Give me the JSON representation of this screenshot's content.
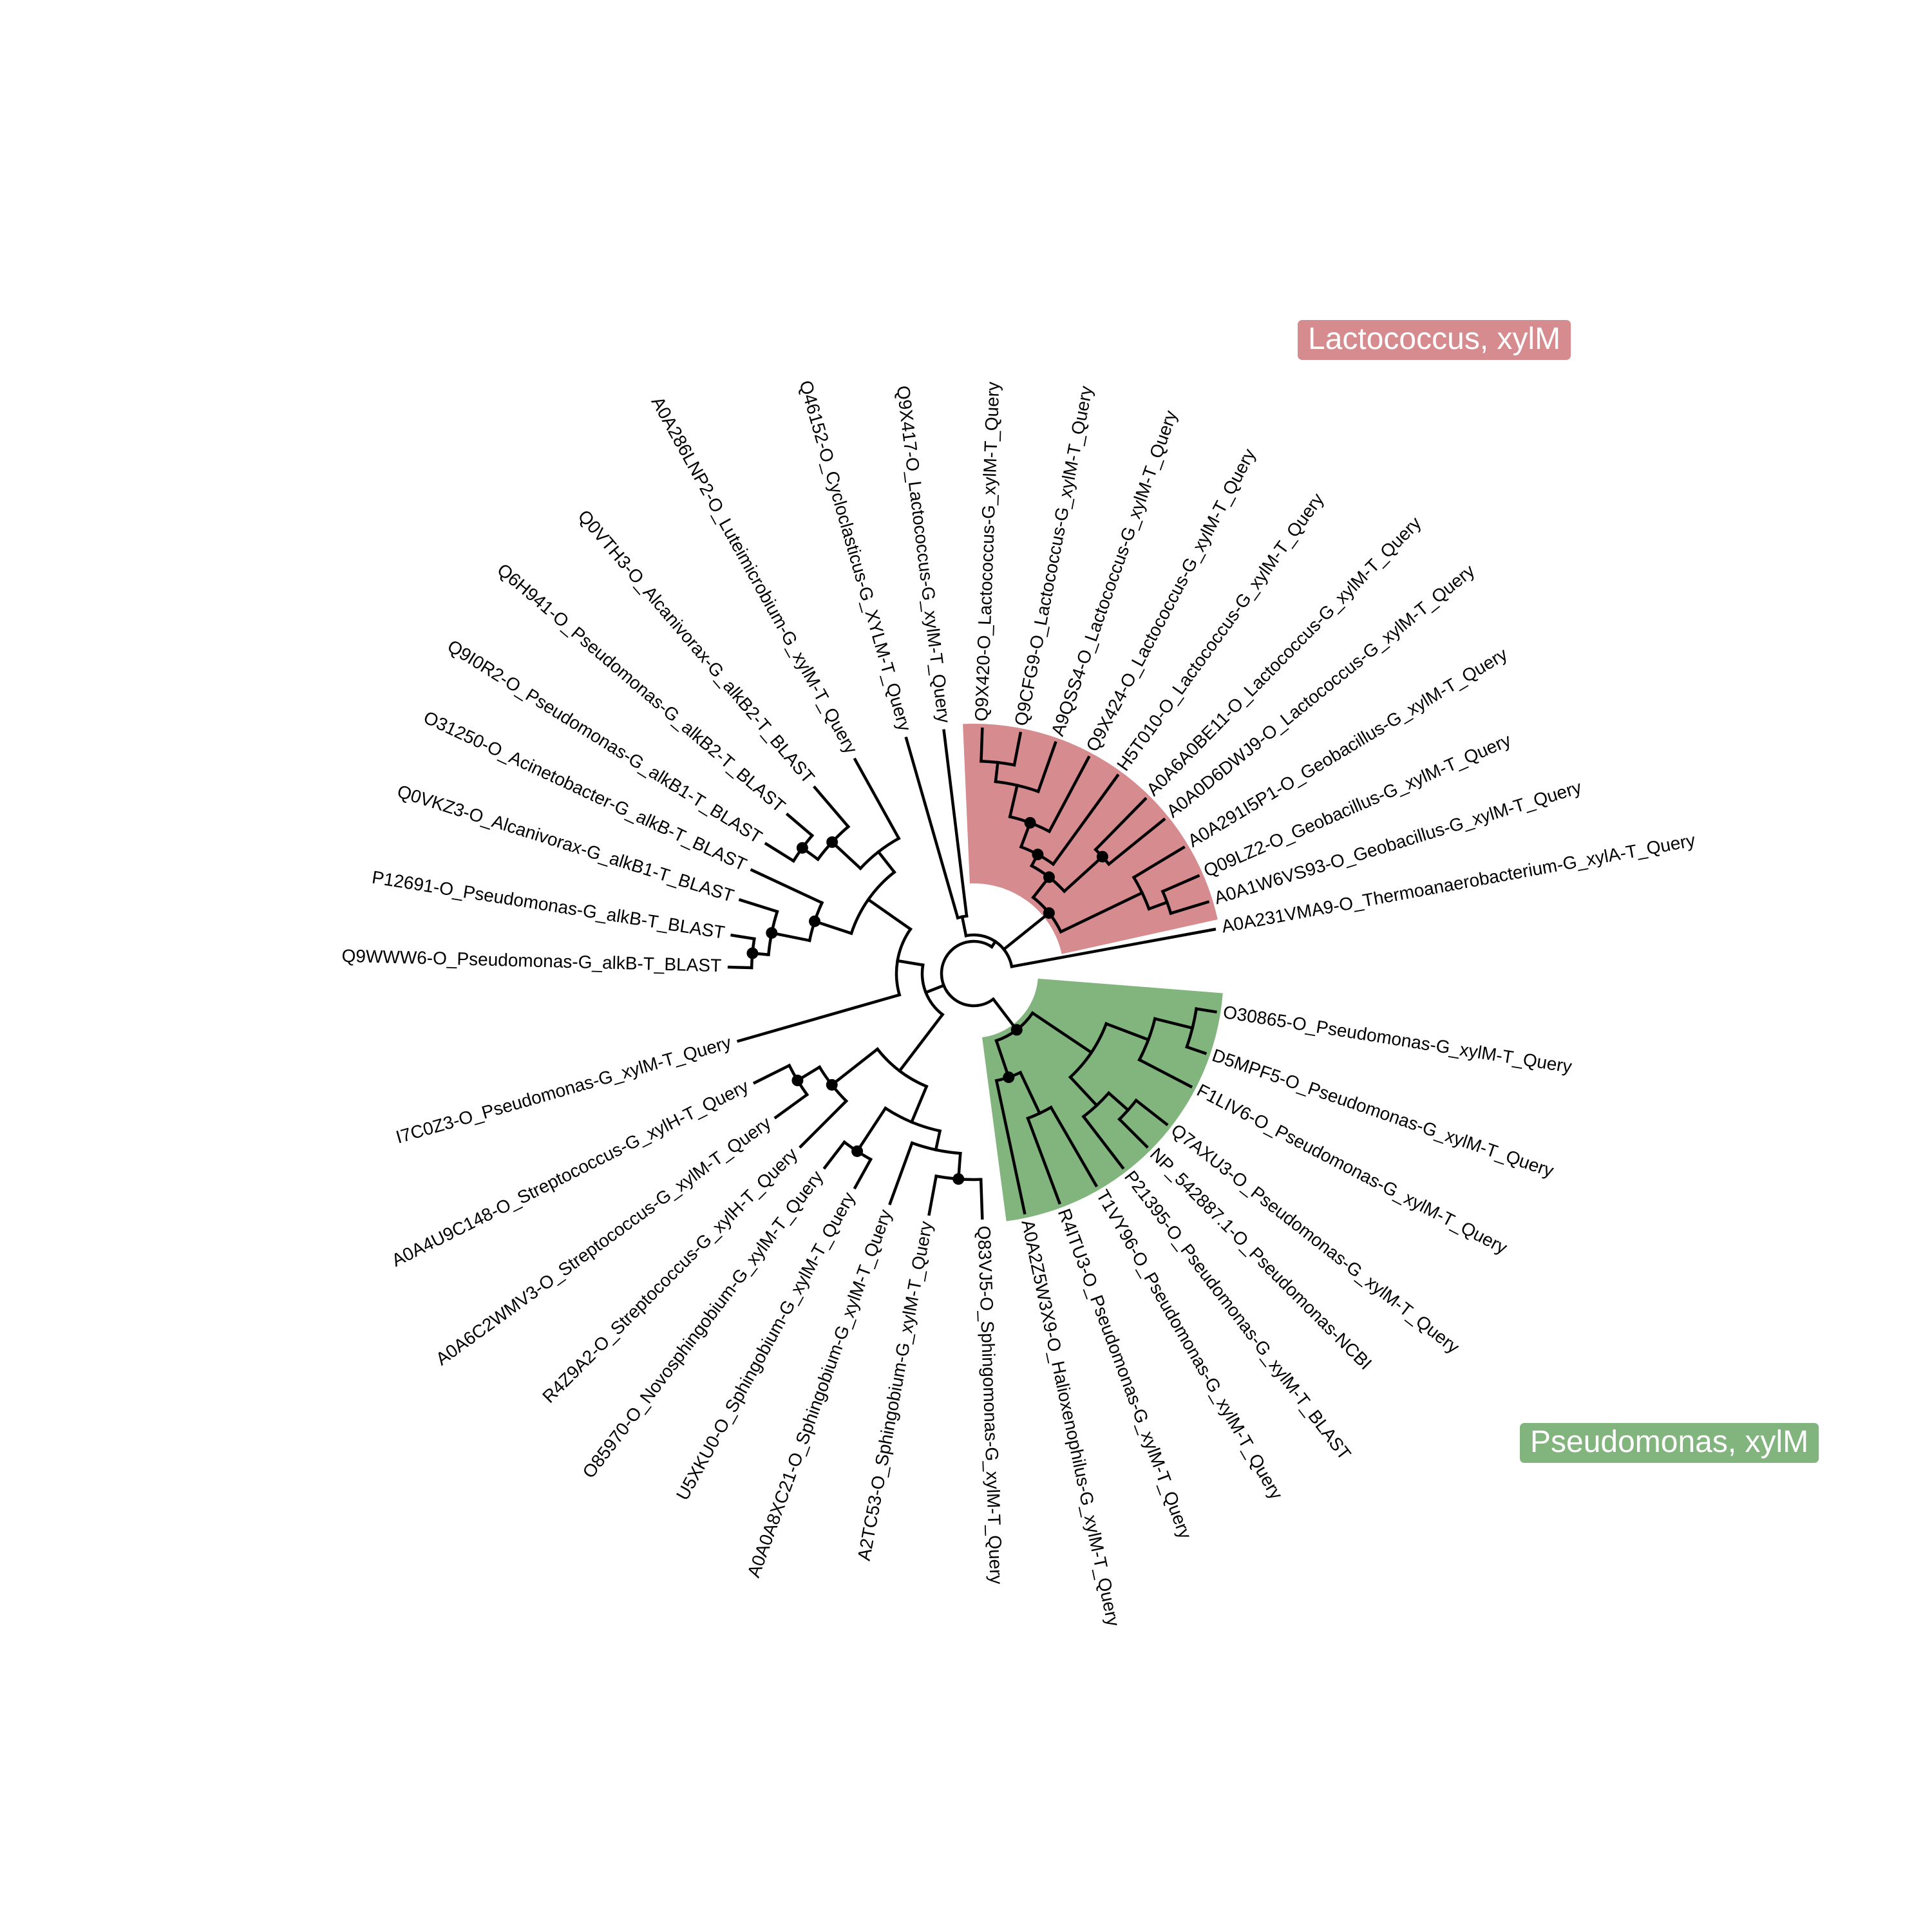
{
  "diagram": {
    "type": "circular-phylogenetic-tree",
    "clades": [
      {
        "name": "lactococcus",
        "label": "Lactococcus, xylM",
        "color": "#d68c8f"
      },
      {
        "name": "pseudomonas",
        "label": "Pseudomonas, xylM",
        "color": "#82b57e"
      }
    ],
    "leaves": [
      {
        "label": "A0A231VMA9-O_Thermoanaerobacterium-G_xylA-T_Query",
        "group": ""
      },
      {
        "label": "A0A1W6VS93-O_Geobacillus-G_xylM-T_Query",
        "group": "lactococcus"
      },
      {
        "label": "Q09LZ2-O_Geobacillus-G_xylM-T_Query",
        "group": "lactococcus"
      },
      {
        "label": "A0A291I5P1-O_Geobacillus-G_xylM-T_Query",
        "group": "lactococcus"
      },
      {
        "label": "A0A0D6DWJ9-O_Lactococcus-G_xylM-T_Query",
        "group": "lactococcus"
      },
      {
        "label": "A0A6A0BE11-O_Lactococcus-G_xylM-T_Query",
        "group": "lactococcus"
      },
      {
        "label": "H5T010-O_Lactococcus-G_xylM-T_Query",
        "group": "lactococcus"
      },
      {
        "label": "Q9X424-O_Lactococcus-G_xylM-T_Query",
        "group": "lactococcus"
      },
      {
        "label": "A9QSS4-O_Lactococcus-G_xylM-T_Query",
        "group": "lactococcus"
      },
      {
        "label": "Q9CFG9-O_Lactococcus-G_xylM-T_Query",
        "group": "lactococcus"
      },
      {
        "label": "Q9X420-O_Lactococcus-G_xylM-T_Query",
        "group": "lactococcus"
      },
      {
        "label": "Q9X417-O_Lactococcus-G_xylM-T_Query",
        "group": ""
      },
      {
        "label": "Q46152-O_Cycloclasticus-G_XYLM-T_Query",
        "group": ""
      },
      {
        "label": "A0A286LNP2-O_Luteimicrobium-G_xylM-T_Query",
        "group": ""
      },
      {
        "label": "Q0VTH3-O_Alcanivorax-G_alkB2-T_BLAST",
        "group": ""
      },
      {
        "label": "Q6H941-O_Pseudomonas-G_alkB2-T_BLAST",
        "group": ""
      },
      {
        "label": "Q9I0R2-O_Pseudomonas-G_alkB1-T_BLAST",
        "group": ""
      },
      {
        "label": "O31250-O_Acinetobacter-G_alkB-T_BLAST",
        "group": ""
      },
      {
        "label": "Q0VKZ3-O_Alcanivorax-G_alkB1-T_BLAST",
        "group": ""
      },
      {
        "label": "P12691-O_Pseudomonas-G_alkB-T_BLAST",
        "group": ""
      },
      {
        "label": "Q9WWW6-O_Pseudomonas-G_alkB-T_BLAST",
        "group": ""
      },
      {
        "label": "I7C0Z3-O_Pseudomonas-G_xylM-T_Query",
        "group": ""
      },
      {
        "label": "A0A4U9C148-O_Streptococcus-G_xylH-T_Query",
        "group": ""
      },
      {
        "label": "A0A6C2WMV3-O_Streptococcus-G_xylM-T_Query",
        "group": ""
      },
      {
        "label": "R4Z9A2-O_Streptococcus-G_xylH-T_Query",
        "group": ""
      },
      {
        "label": "O85970-O_Novosphingobium-G_xylM-T_Query",
        "group": ""
      },
      {
        "label": "U5XKU0-O_Sphingobium-G_xylM-T_Query",
        "group": ""
      },
      {
        "label": "A0A0A8XC21-O_Sphingobium-G_xylM-T_Query",
        "group": ""
      },
      {
        "label": "A2TC53-O_Sphingobium-G_xylM-T_Query",
        "group": ""
      },
      {
        "label": "Q83VJ5-O_Sphingomonas-G_xylM-T_Query",
        "group": ""
      },
      {
        "label": "A0A2Z5W3X9-O_Halioxenophilus-G_xylM-T_Query",
        "group": "pseudomonas"
      },
      {
        "label": "R4ITU3-O_Pseudomonas-G_xylM-T_Query",
        "group": "pseudomonas"
      },
      {
        "label": "T1VY96-O_Pseudomonas-G_xylM-T_Query",
        "group": "pseudomonas"
      },
      {
        "label": "P21395-O_Pseudomonas-G_xylM-T_BLAST",
        "group": "pseudomonas"
      },
      {
        "label": "NP_542887.1-O_Pseudomonas-NCBI",
        "group": "pseudomonas"
      },
      {
        "label": "Q7AXU3-O_Pseudomonas-G_xylM-T_Query",
        "group": "pseudomonas"
      },
      {
        "label": "F1LIV6-O_Pseudomonas-G_xylM-T_Query",
        "group": "pseudomonas"
      },
      {
        "label": "D5MPF5-O_Pseudomonas-G_xylM-T_Query",
        "group": "pseudomonas"
      },
      {
        "label": "O30865-O_Pseudomonas-G_xylM-T_Query",
        "group": "pseudomonas"
      }
    ]
  }
}
